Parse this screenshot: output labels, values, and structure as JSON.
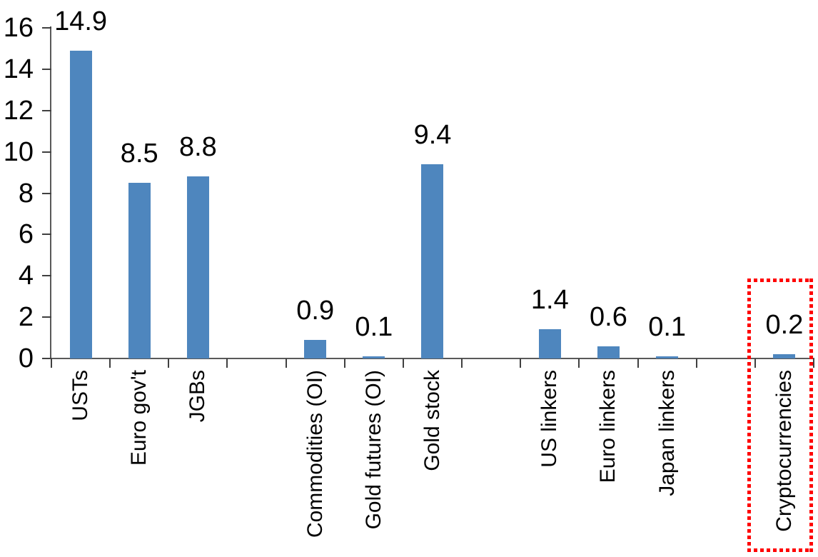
{
  "chart_data": {
    "type": "bar",
    "title": "",
    "xlabel": "",
    "ylabel": "",
    "categories": [
      "USTs",
      "Euro gov't",
      "JGBs",
      "Commodities (OI)",
      "Gold futures (OI)",
      "Gold stock",
      "US linkers",
      "Euro linkers",
      "Japan linkers",
      "Cryptocurrencies"
    ],
    "values": [
      14.9,
      8.5,
      8.8,
      0.9,
      0.1,
      9.4,
      1.4,
      0.6,
      0.1,
      0.2
    ],
    "data_labels": [
      "14.9",
      "8.5",
      "8.8",
      "0.9",
      "0.1",
      "9.4",
      "1.4",
      "0.6",
      "0.1",
      "0.2"
    ],
    "group_sizes": [
      3,
      3,
      3,
      1
    ],
    "ylim": [
      0,
      16
    ],
    "ytick_step": 2,
    "ytick_labels": [
      "0",
      "2",
      "4",
      "6",
      "8",
      "10",
      "12",
      "14",
      "16"
    ],
    "grid": false,
    "legend": false,
    "bar_color": "#4E86BE",
    "axis_color": "#595959",
    "text_color": "#000000",
    "highlight": {
      "category": "Cryptocurrencies",
      "value": 0.2,
      "color": "#FF0000",
      "style": "dotted-rectangle"
    }
  }
}
